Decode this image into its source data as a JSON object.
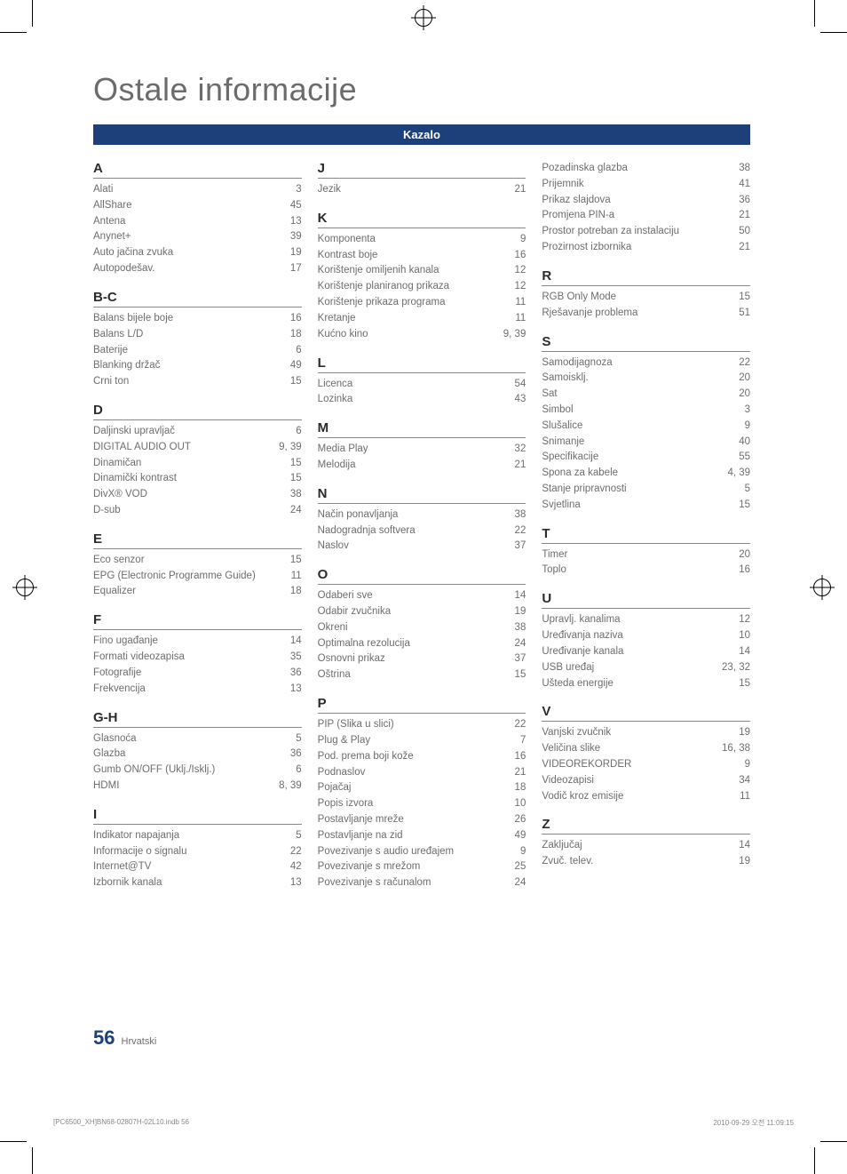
{
  "title": "Ostale informacije",
  "banner": "Kazalo",
  "footer": {
    "page": "56",
    "lang": "Hrvatski"
  },
  "printline": {
    "left": "[PC6500_XH]BN68-02807H-02L10.indb   56",
    "right": "2010-09-29   오전 11:09:15"
  },
  "columns": [
    {
      "sections": [
        {
          "letter": "A",
          "entries": [
            [
              "Alati",
              "3"
            ],
            [
              "AllShare",
              "45"
            ],
            [
              "Antena",
              "13"
            ],
            [
              "Anynet+",
              "39"
            ],
            [
              "Auto jačina zvuka",
              "19"
            ],
            [
              "Autopodešav.",
              "17"
            ]
          ]
        },
        {
          "letter": "B-C",
          "entries": [
            [
              "Balans bijele boje",
              "16"
            ],
            [
              "Balans L/D",
              "18"
            ],
            [
              "Baterije",
              "6"
            ],
            [
              "Blanking držač",
              "49"
            ],
            [
              "Crni ton",
              "15"
            ]
          ]
        },
        {
          "letter": "D",
          "entries": [
            [
              "Daljinski upravljač",
              "6"
            ],
            [
              "DIGITAL AUDIO OUT",
              "9, 39"
            ],
            [
              "Dinamičan",
              "15"
            ],
            [
              "Dinamički kontrast",
              "15"
            ],
            [
              "DivX® VOD",
              "38"
            ],
            [
              "D-sub",
              "24"
            ]
          ]
        },
        {
          "letter": "E",
          "entries": [
            [
              "Eco senzor",
              "15"
            ],
            [
              "EPG (Electronic Programme Guide)",
              "11"
            ],
            [
              "Equalizer",
              "18"
            ]
          ]
        },
        {
          "letter": "F",
          "entries": [
            [
              "Fino ugađanje",
              "14"
            ],
            [
              "Formati videozapisa",
              "35"
            ],
            [
              "Fotografije",
              "36"
            ],
            [
              "Frekvencija",
              "13"
            ]
          ]
        },
        {
          "letter": "G-H",
          "entries": [
            [
              "Glasnoća",
              "5"
            ],
            [
              "Glazba",
              "36"
            ],
            [
              "Gumb ON/OFF (Uklj./Isklj.)",
              "6"
            ],
            [
              "HDMI",
              "8, 39"
            ]
          ]
        },
        {
          "letter": "I",
          "entries": [
            [
              "Indikator napajanja",
              "5"
            ],
            [
              "Informacije o signalu",
              "22"
            ],
            [
              "Internet@TV",
              "42"
            ],
            [
              "Izbornik kanala",
              "13"
            ]
          ]
        }
      ]
    },
    {
      "sections": [
        {
          "letter": "J",
          "entries": [
            [
              "Jezik",
              "21"
            ]
          ]
        },
        {
          "letter": "K",
          "entries": [
            [
              "Komponenta",
              "9"
            ],
            [
              "Kontrast boje",
              "16"
            ],
            [
              "Korištenje omiljenih kanala",
              "12"
            ],
            [
              "Korištenje planiranog prikaza",
              "12"
            ],
            [
              "Korištenje prikaza programa",
              "11"
            ],
            [
              "Kretanje",
              "11"
            ],
            [
              "Kućno kino",
              "9, 39"
            ]
          ]
        },
        {
          "letter": "L",
          "entries": [
            [
              "Licenca",
              "54"
            ],
            [
              "Lozinka",
              "43"
            ]
          ]
        },
        {
          "letter": "M",
          "entries": [
            [
              "Media Play",
              "32"
            ],
            [
              "Melodija",
              "21"
            ]
          ]
        },
        {
          "letter": "N",
          "entries": [
            [
              "Način ponavljanja",
              "38"
            ],
            [
              "Nadogradnja softvera",
              "22"
            ],
            [
              "Naslov",
              "37"
            ]
          ]
        },
        {
          "letter": "O",
          "entries": [
            [
              "Odaberi sve",
              "14"
            ],
            [
              "Odabir zvučnika",
              "19"
            ],
            [
              "Okreni",
              "38"
            ],
            [
              "Optimalna rezolucija",
              "24"
            ],
            [
              "Osnovni prikaz",
              "37"
            ],
            [
              "Oštrina",
              "15"
            ]
          ]
        },
        {
          "letter": "P",
          "entries": [
            [
              "PIP (Slika u slici)",
              "22"
            ],
            [
              "Plug & Play",
              "7"
            ],
            [
              "Pod. prema boji kože",
              "16"
            ],
            [
              "Podnaslov",
              "21"
            ],
            [
              "Pojačaj",
              "18"
            ],
            [
              "Popis izvora",
              "10"
            ],
            [
              "Postavljanje mreže",
              "26"
            ],
            [
              "Postavljanje na zid",
              "49"
            ],
            [
              "Povezivanje s audio uređajem",
              "9"
            ],
            [
              "Povezivanje s mrežom",
              "25"
            ],
            [
              "Povezivanje s računalom",
              "24"
            ]
          ]
        }
      ]
    },
    {
      "sections": [
        {
          "letter": "",
          "entries": [
            [
              "Pozadinska glazba",
              "38"
            ],
            [
              "Prijemnik",
              "41"
            ],
            [
              "Prikaz slajdova",
              "36"
            ],
            [
              "Promjena PIN-a",
              "21"
            ],
            [
              "Prostor potreban za instalaciju",
              "50"
            ],
            [
              "Prozirnost izbornika",
              "21"
            ]
          ]
        },
        {
          "letter": "R",
          "entries": [
            [
              "RGB Only Mode",
              "15"
            ],
            [
              "Rješavanje problema",
              "51"
            ]
          ]
        },
        {
          "letter": "S",
          "entries": [
            [
              "Samodijagnoza",
              "22"
            ],
            [
              "Samoisklj.",
              "20"
            ],
            [
              "Sat",
              "20"
            ],
            [
              "Simbol",
              "3"
            ],
            [
              "Slušalice",
              "9"
            ],
            [
              "Snimanje",
              "40"
            ],
            [
              "Specifikacije",
              "55"
            ],
            [
              "Spona za kabele",
              "4, 39"
            ],
            [
              "Stanje pripravnosti",
              "5"
            ],
            [
              "Svjetlina",
              "15"
            ]
          ]
        },
        {
          "letter": "T",
          "entries": [
            [
              "Timer",
              "20"
            ],
            [
              "Toplo",
              "16"
            ]
          ]
        },
        {
          "letter": "U",
          "entries": [
            [
              "Upravlj. kanalima",
              "12"
            ],
            [
              "Uređivanja naziva",
              "10"
            ],
            [
              "Uređivanje kanala",
              "14"
            ],
            [
              "USB uređaj",
              "23, 32"
            ],
            [
              "Ušteda energije",
              "15"
            ]
          ]
        },
        {
          "letter": "V",
          "entries": [
            [
              "Vanjski zvučnik",
              "19"
            ],
            [
              "Veličina slike",
              "16, 38"
            ],
            [
              "VIDEOREKORDER",
              "9"
            ],
            [
              "Videozapisi",
              "34"
            ],
            [
              "Vodič kroz emisije",
              "11"
            ]
          ]
        },
        {
          "letter": "Z",
          "entries": [
            [
              "Zaključaj",
              "14"
            ],
            [
              "Zvuč. telev.",
              "19"
            ]
          ]
        }
      ]
    }
  ]
}
